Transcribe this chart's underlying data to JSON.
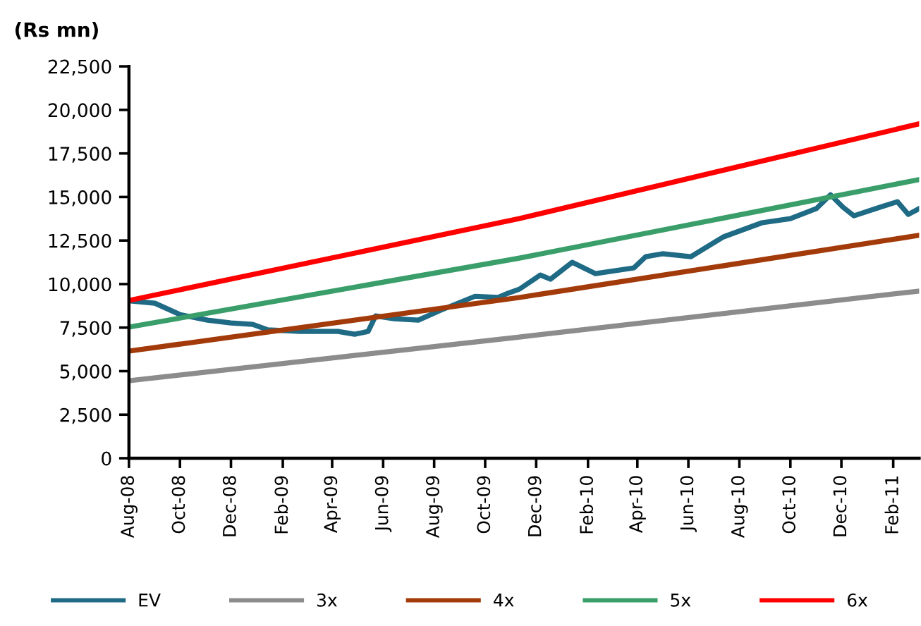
{
  "chart_data": {
    "type": "line",
    "ylabel": "(Rs mn)",
    "xlim": [
      "2008-08-01",
      "2011-03-04"
    ],
    "xticks": [
      {
        "value": "2008-08-01",
        "label": "Aug-08"
      },
      {
        "value": "2008-10-01",
        "label": "Oct-08"
      },
      {
        "value": "2008-12-01",
        "label": "Dec-08"
      },
      {
        "value": "2009-02-01",
        "label": "Feb-09"
      },
      {
        "value": "2009-04-01",
        "label": "Apr-09"
      },
      {
        "value": "2009-06-01",
        "label": "Jun-09"
      },
      {
        "value": "2009-08-01",
        "label": "Aug-09"
      },
      {
        "value": "2009-10-01",
        "label": "Oct-09"
      },
      {
        "value": "2009-12-01",
        "label": "Dec-09"
      },
      {
        "value": "2010-02-01",
        "label": "Feb-10"
      },
      {
        "value": "2010-04-01",
        "label": "Apr-10"
      },
      {
        "value": "2010-06-01",
        "label": "Jun-10"
      },
      {
        "value": "2010-08-01",
        "label": "Aug-10"
      },
      {
        "value": "2010-10-01",
        "label": "Oct-10"
      },
      {
        "value": "2010-12-01",
        "label": "Dec-10"
      },
      {
        "value": "2011-02-01",
        "label": "Feb-11"
      }
    ],
    "ylim": [
      0,
      22500
    ],
    "yticks": [
      0,
      {
        "value": 2500,
        "label": "2,500"
      },
      {
        "value": 5000,
        "label": "5,000"
      },
      {
        "value": 7500,
        "label": "7,500"
      },
      {
        "value": 10000,
        "label": "10,000"
      },
      {
        "value": 12500,
        "label": "12,500"
      },
      {
        "value": 15000,
        "label": "15,000"
      },
      {
        "value": 17500,
        "label": "17,500"
      },
      {
        "value": 20000,
        "label": "20,000"
      },
      {
        "value": 22500,
        "label": "22,500"
      }
    ],
    "grid": false,
    "legend": "bottom",
    "marker": "none",
    "line_style": "solid",
    "series": [
      {
        "name": "EV",
        "color": "#1f6b85",
        "x": [
          "2008-08-01",
          "2008-09-01",
          "2008-10-01",
          "2008-11-03",
          "2008-12-01",
          "2008-12-27",
          "2009-01-14",
          "2009-02-22",
          "2009-04-08",
          "2009-04-28",
          "2009-05-14",
          "2009-05-23",
          "2009-06-14",
          "2009-07-13",
          "2009-08-09",
          "2009-09-19",
          "2009-10-16",
          "2009-10-28",
          "2009-11-11",
          "2009-12-06",
          "2009-12-18",
          "2010-01-13",
          "2010-02-10",
          "2010-03-28",
          "2010-04-11",
          "2010-05-01",
          "2010-06-04",
          "2010-07-13",
          "2010-08-28",
          "2010-10-01",
          "2010-11-01",
          "2010-11-18",
          "2010-12-03",
          "2010-12-16",
          "2011-01-16",
          "2011-02-06",
          "2011-02-19",
          "2011-03-04"
        ],
        "values": [
          9040,
          8900,
          8250,
          7930,
          7770,
          7690,
          7370,
          7280,
          7280,
          7120,
          7280,
          8170,
          8010,
          7930,
          8500,
          9300,
          9230,
          9470,
          9710,
          10520,
          10280,
          11250,
          10600,
          10930,
          11570,
          11740,
          11570,
          12710,
          13520,
          13760,
          14330,
          15130,
          14410,
          13920,
          14410,
          14730,
          14000,
          14330
        ]
      },
      {
        "name": "3x",
        "color": "#8c8c8c",
        "x": [
          "2008-08-01",
          "2009-11-11",
          "2011-03-04"
        ],
        "values": [
          4450,
          6960,
          9600
        ]
      },
      {
        "name": "4x",
        "color": "#a33a0a",
        "x": [
          "2008-08-01",
          "2009-11-11",
          "2011-03-04"
        ],
        "values": [
          6150,
          9230,
          12800
        ]
      },
      {
        "name": "5x",
        "color": "#3a9e6a",
        "x": [
          "2008-08-01",
          "2009-11-11",
          "2011-03-04"
        ],
        "values": [
          7530,
          11490,
          16000
        ]
      },
      {
        "name": "6x",
        "color": "#ff0000",
        "x": [
          "2008-08-01",
          "2009-11-11",
          "2011-03-04"
        ],
        "values": [
          9060,
          13760,
          19200
        ]
      }
    ]
  }
}
